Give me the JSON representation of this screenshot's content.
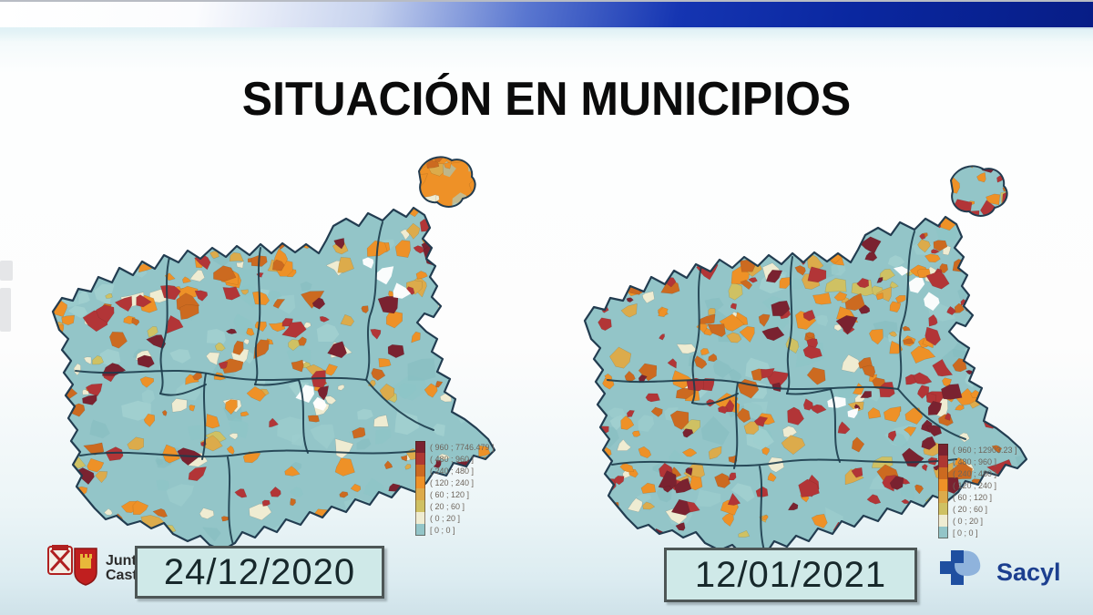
{
  "title": "SITUACIÓN EN MUNICIPIOS",
  "topbar": {
    "style": "white-to-darkblue-gradient",
    "color_left": "#ffffff",
    "color_right": "#071d86"
  },
  "legend_colors": [
    "#7a2230",
    "#ae3832",
    "#cc6a20",
    "#ee9127",
    "#dcab4b",
    "#cfc163",
    "#efecd2",
    "#93c5c8"
  ],
  "maps": [
    {
      "id": "left",
      "date": "24/12/2020",
      "legend": [
        "( 960 ; 7746.479 ]",
        "( 480 ; 960 ]",
        "( 240 ; 480 ]",
        "( 120 ; 240 ]",
        "( 60 ; 120 ]",
        "( 20 ; 60 ]",
        "( 0 ; 20 ]",
        "[ 0 ; 0 ]"
      ],
      "render": {
        "seed": 7,
        "exclave_fill": "#ee9127",
        "counts": {
          "cream": 55,
          "yellow": 28,
          "gold": 44,
          "orange": 118,
          "darkorange": 52,
          "red": 58,
          "darkred": 26
        }
      }
    },
    {
      "id": "right",
      "date": "12/01/2021",
      "legend": [
        "( 960 ; 12903.23 ]",
        "( 480 ; 960 ]",
        "( 240 ; 480 ]",
        "( 120 ; 240 ]",
        "( 60 ; 120 ]",
        "( 20 ; 60 ]",
        "( 0 ; 20 ]",
        "[ 0 ; 0 ]"
      ],
      "render": {
        "seed": 31,
        "exclave_fill": "#93c5c8",
        "counts": {
          "cream": 40,
          "yellow": 22,
          "gold": 38,
          "orange": 142,
          "darkorange": 74,
          "red": 130,
          "darkred": 64
        }
      }
    }
  ],
  "map_colors": {
    "base": "#93c5c8",
    "mottle": [
      "#9ecfcf",
      "#85bcbf",
      "#a9d6d3",
      "#8cc4c6"
    ],
    "outline": "#223c50",
    "province_line": "#1d3c4c",
    "white_patch": "#ffffff",
    "bins": {
      "darkred": "#7a2230",
      "red": "#b23537",
      "darkorange": "#cc6a20",
      "orange": "#ee9127",
      "gold": "#dcab4b",
      "yellow": "#cfc163",
      "cream": "#efecd2"
    }
  },
  "chart_data": {
    "type": "choropleth-map-pair",
    "region": "Castilla y León (municipios)",
    "title": "SITUACIÓN EN MUNICIPIOS",
    "maps": [
      {
        "date": "24/12/2020",
        "bins": [
          [
            960,
            7746.479
          ],
          [
            480,
            960
          ],
          [
            240,
            480
          ],
          [
            120,
            240
          ],
          [
            60,
            120
          ],
          [
            20,
            60
          ],
          [
            0,
            20
          ],
          [
            0,
            0
          ]
        ]
      },
      {
        "date": "12/01/2021",
        "bins": [
          [
            960,
            12903.23
          ],
          [
            480,
            960
          ],
          [
            240,
            480
          ],
          [
            120,
            240
          ],
          [
            60,
            120
          ],
          [
            20,
            60
          ],
          [
            0,
            20
          ],
          [
            0,
            0
          ]
        ]
      }
    ],
    "legend_position": "right-bottom of each map",
    "note": "higher red/dark-red municipality density on 12/01/2021 map"
  },
  "logos": {
    "junta_line1": "Junta de",
    "junta_line2": "Castilla y León",
    "sacyl": "Sacyl"
  }
}
